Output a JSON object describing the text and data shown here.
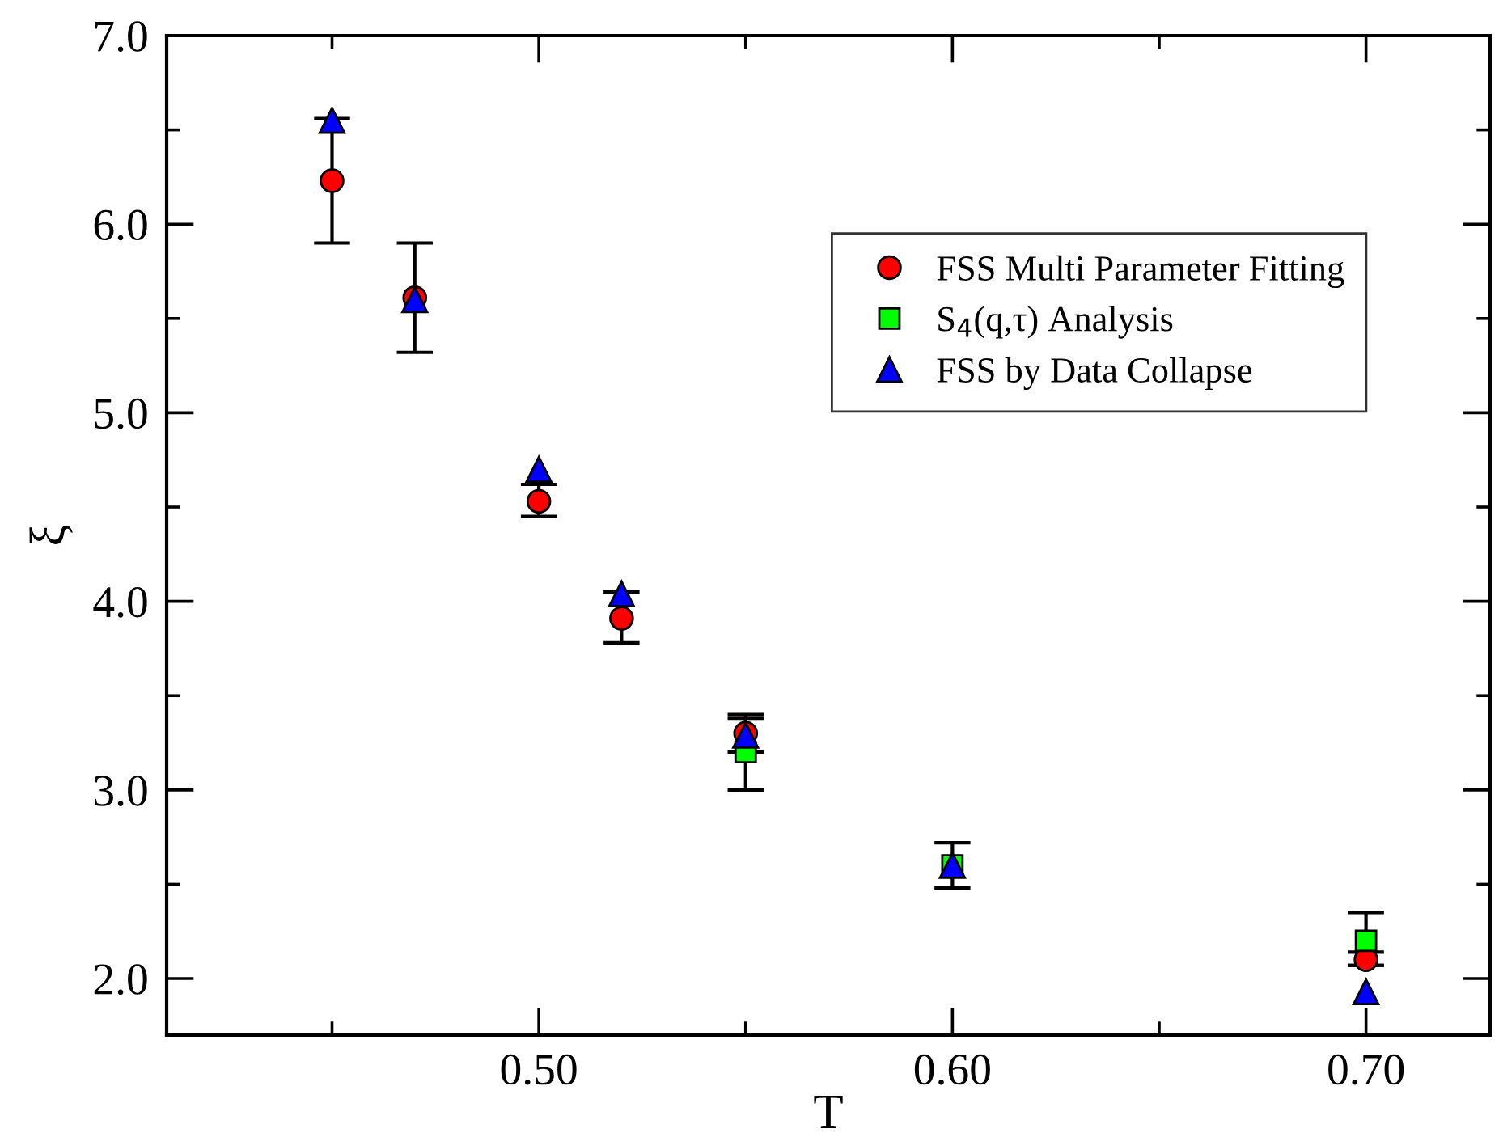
{
  "chart_data": {
    "type": "scatter",
    "xlabel": "T",
    "ylabel": "ξ",
    "xlim": [
      0.41,
      0.73
    ],
    "ylim": [
      1.7,
      7.0
    ],
    "xticks": [
      {
        "value": 0.45,
        "label": null
      },
      {
        "value": 0.5,
        "label": "0.50"
      },
      {
        "value": 0.55,
        "label": null
      },
      {
        "value": 0.6,
        "label": "0.60"
      },
      {
        "value": 0.65,
        "label": null
      },
      {
        "value": 0.7,
        "label": "0.70"
      }
    ],
    "yticks": [
      {
        "value": 2.0,
        "label": "2.0"
      },
      {
        "value": 2.5,
        "label": null
      },
      {
        "value": 3.0,
        "label": "3.0"
      },
      {
        "value": 3.5,
        "label": null
      },
      {
        "value": 4.0,
        "label": "4.0"
      },
      {
        "value": 4.5,
        "label": null
      },
      {
        "value": 5.0,
        "label": "5.0"
      },
      {
        "value": 5.5,
        "label": null
      },
      {
        "value": 6.0,
        "label": "6.0"
      },
      {
        "value": 6.5,
        "label": null
      },
      {
        "value": 7.0,
        "label": "7.0"
      }
    ],
    "grid": false,
    "legend": "top right",
    "series": [
      {
        "name": "FSS Multi Parameter Fitting",
        "color": "#ff0000",
        "marker": "circle",
        "x": [
          0.45,
          0.47,
          0.5,
          0.52,
          0.55,
          0.6,
          0.7
        ],
        "values": [
          6.23,
          5.61,
          4.53,
          3.91,
          3.3,
          null,
          2.1
        ],
        "errors": [
          [
            5.9,
            6.56
          ],
          [
            5.32,
            5.9
          ],
          [
            4.45,
            4.62
          ],
          [
            3.78,
            4.05
          ],
          [
            3.2,
            3.4
          ],
          null,
          [
            2.07,
            2.14
          ]
        ]
      },
      {
        "name": "S$_{4}$(q,τ) Analysis",
        "color": "#00ff00",
        "marker": "square",
        "x": [
          0.55,
          0.6,
          0.7
        ],
        "values": [
          3.2,
          2.6,
          2.2
        ],
        "errors": [
          [
            3.0,
            3.38
          ],
          [
            2.48,
            2.72
          ],
          [
            2.07,
            2.35
          ]
        ]
      },
      {
        "name": "FSS by Data Collapse",
        "color": "#0000ff",
        "marker": "triangle",
        "x": [
          0.45,
          0.47,
          0.5,
          0.52,
          0.55,
          0.6,
          0.7
        ],
        "values": [
          6.55,
          5.6,
          4.7,
          4.04,
          3.29,
          2.6,
          1.93
        ]
      }
    ]
  }
}
